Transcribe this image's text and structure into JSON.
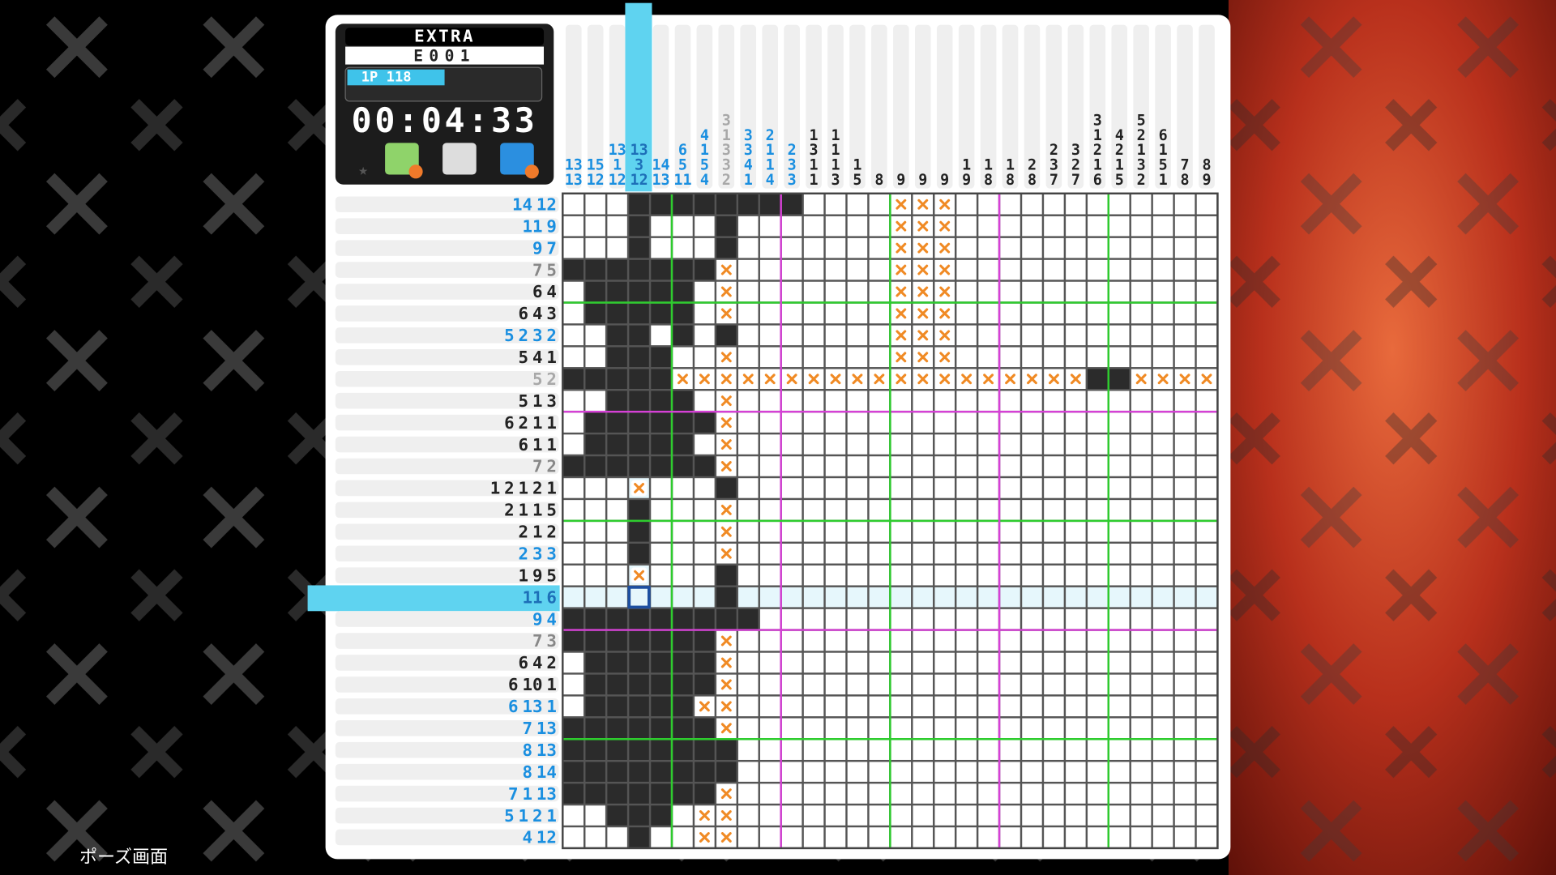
{
  "header": {
    "mode": "EXTRA",
    "puzzle_id": "E001",
    "player": "1P 118",
    "timer": "00:04:33"
  },
  "column_clues": [
    {
      "numbers": [
        13,
        13
      ],
      "color": "#1a8fe0"
    },
    {
      "numbers": [
        15,
        12
      ],
      "color": "#1a8fe0"
    },
    {
      "numbers": [
        13,
        1,
        12
      ],
      "color": "#1a8fe0"
    },
    {
      "numbers": [
        13,
        3,
        12
      ],
      "color": "#1d6fb8"
    },
    {
      "numbers": [
        14,
        13
      ],
      "color": "#1a8fe0"
    },
    {
      "numbers": [
        6,
        5,
        11
      ],
      "color": "#1a8fe0"
    },
    {
      "numbers": [
        4,
        1,
        5,
        4
      ],
      "color": "#1a8fe0"
    },
    {
      "numbers": [
        3,
        1,
        3,
        3,
        2
      ],
      "color": "#a8a8a8"
    },
    {
      "numbers": [
        3,
        3,
        4,
        1
      ],
      "color": "#1a8fe0"
    },
    {
      "numbers": [
        2,
        1,
        1,
        4
      ],
      "color": "#1a8fe0"
    },
    {
      "numbers": [
        2,
        3,
        3
      ],
      "color": "#1a8fe0"
    },
    {
      "numbers": [
        1,
        3,
        1,
        1
      ],
      "color": "#222222"
    },
    {
      "numbers": [
        1,
        1,
        1,
        3
      ],
      "color": "#222222"
    },
    {
      "numbers": [
        1,
        5
      ],
      "color": "#222222"
    },
    {
      "numbers": [
        8
      ],
      "color": "#222222"
    },
    {
      "numbers": [
        9
      ],
      "color": "#222222"
    },
    {
      "numbers": [
        9
      ],
      "color": "#222222"
    },
    {
      "numbers": [
        9
      ],
      "color": "#222222"
    },
    {
      "numbers": [
        1,
        9
      ],
      "color": "#222222"
    },
    {
      "numbers": [
        1,
        8
      ],
      "color": "#222222"
    },
    {
      "numbers": [
        1,
        8
      ],
      "color": "#222222"
    },
    {
      "numbers": [
        2,
        8
      ],
      "color": "#222222"
    },
    {
      "numbers": [
        2,
        3,
        7
      ],
      "color": "#222222"
    },
    {
      "numbers": [
        3,
        2,
        7
      ],
      "color": "#222222"
    },
    {
      "numbers": [
        3,
        1,
        2,
        1,
        6
      ],
      "color": "#222222"
    },
    {
      "numbers": [
        4,
        2,
        1,
        5
      ],
      "color": "#222222"
    },
    {
      "numbers": [
        5,
        2,
        1,
        3,
        2
      ],
      "color": "#222222"
    },
    {
      "numbers": [
        6,
        1,
        5,
        1
      ],
      "color": "#222222"
    },
    {
      "numbers": [
        7,
        8
      ],
      "color": "#222222"
    },
    {
      "numbers": [
        8,
        9
      ],
      "color": "#222222"
    }
  ],
  "row_clues": [
    {
      "numbers": [
        14,
        12
      ],
      "color": "#1a8fe0"
    },
    {
      "numbers": [
        11,
        9
      ],
      "color": "#1a8fe0"
    },
    {
      "numbers": [
        9,
        7
      ],
      "color": "#1a8fe0"
    },
    {
      "numbers": [
        7,
        5
      ],
      "color": "#888888"
    },
    {
      "numbers": [
        6,
        4
      ],
      "color": "#222222"
    },
    {
      "numbers": [
        6,
        4,
        3
      ],
      "color": "#222222"
    },
    {
      "numbers": [
        5,
        2,
        3,
        2
      ],
      "color": "#1a8fe0"
    },
    {
      "numbers": [
        5,
        4,
        1
      ],
      "color": "#222222"
    },
    {
      "numbers": [
        5,
        2
      ],
      "color": "#a8a8a8"
    },
    {
      "numbers": [
        5,
        1,
        3
      ],
      "color": "#222222"
    },
    {
      "numbers": [
        6,
        2,
        1,
        1
      ],
      "color": "#222222"
    },
    {
      "numbers": [
        6,
        1,
        1
      ],
      "color": "#222222"
    },
    {
      "numbers": [
        7,
        2
      ],
      "color": "#888888"
    },
    {
      "numbers": [
        1,
        2,
        1,
        2,
        1
      ],
      "color": "#222222"
    },
    {
      "numbers": [
        2,
        1,
        1,
        5
      ],
      "color": "#222222"
    },
    {
      "numbers": [
        2,
        1,
        2
      ],
      "color": "#222222"
    },
    {
      "numbers": [
        2,
        3,
        3
      ],
      "color": "#1a8fe0"
    },
    {
      "numbers": [
        1,
        9,
        5
      ],
      "color": "#222222"
    },
    {
      "numbers": [
        11,
        6
      ],
      "color": "#1d6fb8"
    },
    {
      "numbers": [
        9,
        4
      ],
      "color": "#1a8fe0"
    },
    {
      "numbers": [
        7,
        3
      ],
      "color": "#888888"
    },
    {
      "numbers": [
        6,
        4,
        2
      ],
      "color": "#222222"
    },
    {
      "numbers": [
        6,
        10,
        1
      ],
      "color": "#222222"
    },
    {
      "numbers": [
        6,
        13,
        1
      ],
      "color": "#1a8fe0"
    },
    {
      "numbers": [
        7,
        13
      ],
      "color": "#1a8fe0"
    },
    {
      "numbers": [
        8,
        13
      ],
      "color": "#1a8fe0"
    },
    {
      "numbers": [
        8,
        14
      ],
      "color": "#1a8fe0"
    },
    {
      "numbers": [
        7,
        1,
        13
      ],
      "color": "#1a8fe0"
    },
    {
      "numbers": [
        5,
        1,
        2,
        1
      ],
      "color": "#1a8fe0"
    },
    {
      "numbers": [
        4,
        12
      ],
      "color": "#1a8fe0"
    }
  ],
  "footer": {
    "pause_label": "ポーズ画面"
  }
}
